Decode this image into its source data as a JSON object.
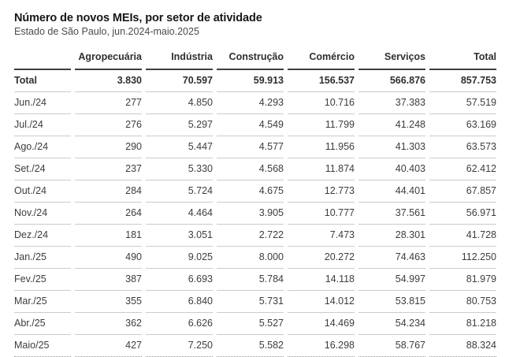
{
  "header": {
    "title": "Número de novos MEIs, por setor de atividade",
    "subtitle": "Estado de São Paulo, jun.2024-maio.2025"
  },
  "table": {
    "columns": [
      "",
      "Agropecuária",
      "Indústria",
      "Construção",
      "Comércio",
      "Serviços",
      "Total"
    ],
    "total_row": {
      "label": "Total",
      "values": [
        "3.830",
        "70.597",
        "59.913",
        "156.537",
        "566.876",
        "857.753"
      ]
    },
    "rows": [
      {
        "label": "Jun./24",
        "values": [
          "277",
          "4.850",
          "4.293",
          "10.716",
          "37.383",
          "57.519"
        ]
      },
      {
        "label": "Jul./24",
        "values": [
          "276",
          "5.297",
          "4.549",
          "11.799",
          "41.248",
          "63.169"
        ]
      },
      {
        "label": "Ago./24",
        "values": [
          "290",
          "5.447",
          "4.577",
          "11.956",
          "41.303",
          "63.573"
        ]
      },
      {
        "label": "Set./24",
        "values": [
          "237",
          "5.330",
          "4.568",
          "11.874",
          "40.403",
          "62.412"
        ]
      },
      {
        "label": "Out./24",
        "values": [
          "284",
          "5.724",
          "4.675",
          "12.773",
          "44.401",
          "67.857"
        ]
      },
      {
        "label": "Nov./24",
        "values": [
          "264",
          "4.464",
          "3.905",
          "10.777",
          "37.561",
          "56.971"
        ]
      },
      {
        "label": "Dez./24",
        "values": [
          "181",
          "3.051",
          "2.722",
          "7.473",
          "28.301",
          "41.728"
        ]
      },
      {
        "label": "Jan./25",
        "values": [
          "490",
          "9.025",
          "8.000",
          "20.272",
          "74.463",
          "112.250"
        ]
      },
      {
        "label": "Fev./25",
        "values": [
          "387",
          "6.693",
          "5.784",
          "14.118",
          "54.997",
          "81.979"
        ]
      },
      {
        "label": "Mar./25",
        "values": [
          "355",
          "6.840",
          "5.731",
          "14.012",
          "53.815",
          "80.753"
        ]
      },
      {
        "label": "Abr./25",
        "values": [
          "362",
          "6.626",
          "5.527",
          "14.469",
          "54.234",
          "81.218"
        ]
      },
      {
        "label": "Maio/25",
        "values": [
          "427",
          "7.250",
          "5.582",
          "16.298",
          "58.767",
          "88.324"
        ]
      }
    ],
    "colors": {
      "title_text": "#161616",
      "subtitle_text": "#4a4a4a",
      "body_text": "#3d3d3d",
      "header_rule": "#3f3f3f",
      "row_rule": "#cbcbcb",
      "bottom_dotted_rule": "#989898"
    }
  }
}
